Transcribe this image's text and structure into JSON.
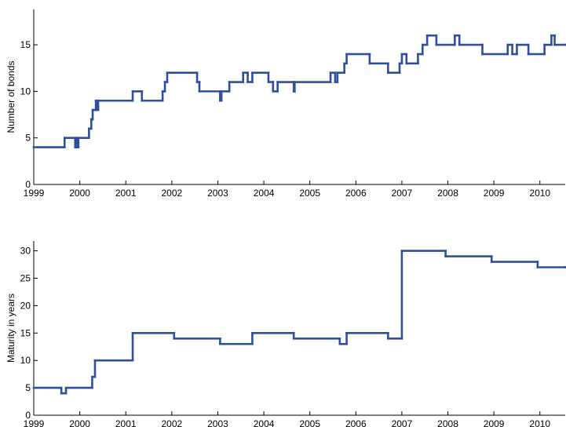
{
  "chart_data": [
    {
      "type": "line",
      "step": true,
      "ylabel": "Number of bonds",
      "xlim": [
        1999,
        2010.55
      ],
      "xticks": [
        1999,
        2000,
        2001,
        2002,
        2003,
        2004,
        2005,
        2006,
        2007,
        2008,
        2009,
        2010
      ],
      "ylim": [
        0,
        18.8
      ],
      "yticks": [
        0,
        5,
        10,
        15
      ],
      "series": [
        {
          "color": "#2e4f9e",
          "x": [
            1999,
            1999.67,
            1999.9,
            1999.93,
            1999.95,
            1999.97,
            2000.2,
            2000.25,
            2000.28,
            2000.35,
            2000.37,
            2000.4,
            2001.15,
            2001.35,
            2001.8,
            2001.85,
            2001.9,
            2002.55,
            2002.6,
            2003.05,
            2003.08,
            2003.25,
            2003.55,
            2003.65,
            2003.75,
            2004.1,
            2004.2,
            2004.3,
            2004.65,
            2004.67,
            2005.45,
            2005.55,
            2005.6,
            2005.75,
            2005.8,
            2006.3,
            2006.7,
            2006.95,
            2007.0,
            2007.1,
            2007.35,
            2007.45,
            2007.55,
            2007.75,
            2008.15,
            2008.25,
            2008.75,
            2009.3,
            2009.4,
            2009.5,
            2009.75,
            2010.1,
            2010.25,
            2010.32,
            2010.55
          ],
          "values": [
            4,
            5,
            4,
            5,
            4,
            5,
            6,
            7,
            8,
            9,
            8,
            9,
            10,
            9,
            10,
            11,
            12,
            11,
            10,
            9,
            10,
            11,
            12,
            11,
            12,
            11,
            10,
            11,
            10,
            11,
            12,
            11,
            12,
            13,
            14,
            13,
            12,
            13,
            14,
            13,
            14,
            15,
            16,
            15,
            16,
            15,
            14,
            15,
            14,
            15,
            14,
            15,
            16,
            15,
            15
          ]
        }
      ]
    },
    {
      "type": "line",
      "step": true,
      "ylabel": "Maturity in years",
      "xlim": [
        1999,
        2010.55
      ],
      "xticks": [
        1999,
        2000,
        2001,
        2002,
        2003,
        2004,
        2005,
        2006,
        2007,
        2008,
        2009,
        2010
      ],
      "ylim": [
        0,
        31.8
      ],
      "yticks": [
        0,
        5,
        10,
        15,
        20,
        25,
        30
      ],
      "series": [
        {
          "color": "#2e4f9e",
          "x": [
            1999,
            1999.6,
            1999.7,
            2000.27,
            2000.33,
            2001.15,
            2002.05,
            2003.05,
            2003.75,
            2004.65,
            2005.65,
            2005.8,
            2006.7,
            2007.0,
            2007.95,
            2008.95,
            2009.95,
            2010.55
          ],
          "values": [
            5,
            4,
            5,
            7,
            10,
            15,
            14,
            13,
            15,
            14,
            13,
            15,
            14,
            30,
            29,
            28,
            27,
            27
          ]
        }
      ]
    }
  ]
}
